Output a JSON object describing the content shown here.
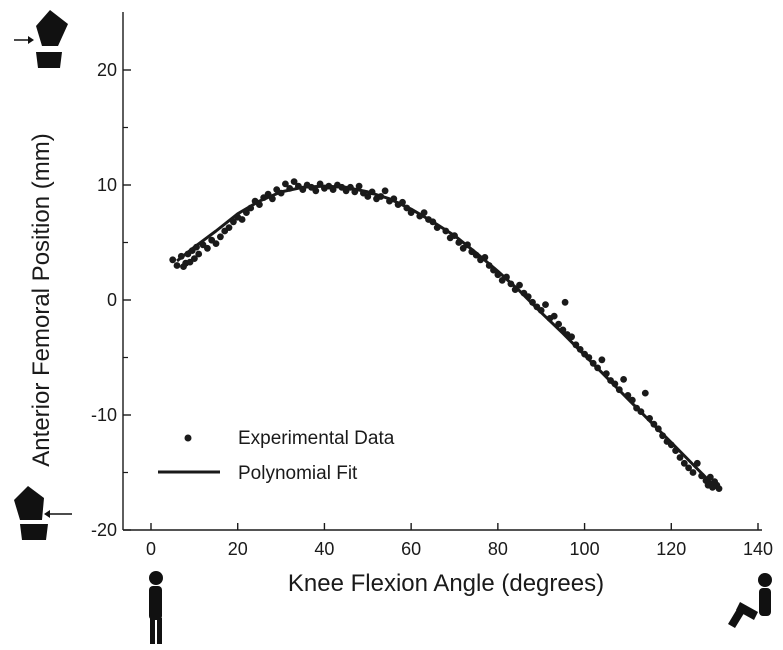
{
  "chart_data": {
    "type": "scatter",
    "xlabel": "Knee Flexion Angle (degrees)",
    "ylabel": "Anterior Femoral Position (mm)",
    "xlim": [
      -10,
      140
    ],
    "ylim": [
      -20,
      25
    ],
    "x_ticks": [
      0,
      20,
      40,
      60,
      80,
      100,
      120,
      140
    ],
    "x_tick_labels": [
      "0",
      "20",
      "40",
      "60",
      "80",
      "100",
      "120",
      "140"
    ],
    "y_ticks": [
      -20,
      -10,
      0,
      10,
      20
    ],
    "y_tick_labels": [
      "-20",
      "-10",
      "0",
      "10",
      "20"
    ],
    "y_minor_ticks": [
      -15,
      -5,
      5,
      15
    ],
    "grid": false,
    "legend_position": "lower-left",
    "colors": {
      "data": "#1a1a1a",
      "axis": "#1a1a1a"
    },
    "series": [
      {
        "name": "Experimental Data",
        "kind": "scatter",
        "points": [
          [
            5,
            3.5
          ],
          [
            6,
            3.0
          ],
          [
            7,
            3.8
          ],
          [
            7.5,
            2.9
          ],
          [
            8,
            3.2
          ],
          [
            8.5,
            4.0
          ],
          [
            9,
            3.3
          ],
          [
            9.5,
            4.3
          ],
          [
            10,
            3.6
          ],
          [
            10.5,
            4.6
          ],
          [
            11,
            4.0
          ],
          [
            12,
            4.8
          ],
          [
            13,
            4.5
          ],
          [
            14,
            5.2
          ],
          [
            15,
            4.9
          ],
          [
            16,
            5.5
          ],
          [
            17,
            6.0
          ],
          [
            18,
            6.3
          ],
          [
            19,
            6.8
          ],
          [
            20,
            7.2
          ],
          [
            21,
            7.0
          ],
          [
            22,
            7.6
          ],
          [
            23,
            8.0
          ],
          [
            24,
            8.6
          ],
          [
            25,
            8.3
          ],
          [
            26,
            8.9
          ],
          [
            27,
            9.2
          ],
          [
            28,
            8.8
          ],
          [
            29,
            9.6
          ],
          [
            30,
            9.3
          ],
          [
            31,
            10.1
          ],
          [
            32,
            9.7
          ],
          [
            33,
            10.3
          ],
          [
            34,
            9.9
          ],
          [
            35,
            9.6
          ],
          [
            36,
            10.0
          ],
          [
            37,
            9.8
          ],
          [
            38,
            9.5
          ],
          [
            39,
            10.1
          ],
          [
            40,
            9.7
          ],
          [
            41,
            9.9
          ],
          [
            42,
            9.6
          ],
          [
            43,
            10.0
          ],
          [
            44,
            9.8
          ],
          [
            45,
            9.5
          ],
          [
            46,
            9.8
          ],
          [
            47,
            9.4
          ],
          [
            48,
            9.9
          ],
          [
            49,
            9.3
          ],
          [
            50,
            9.0
          ],
          [
            51,
            9.4
          ],
          [
            52,
            8.8
          ],
          [
            53,
            9.0
          ],
          [
            54,
            9.5
          ],
          [
            55,
            8.6
          ],
          [
            56,
            8.8
          ],
          [
            57,
            8.3
          ],
          [
            58,
            8.5
          ],
          [
            59,
            8.0
          ],
          [
            60,
            7.6
          ],
          [
            62,
            7.3
          ],
          [
            63,
            7.6
          ],
          [
            64,
            7.0
          ],
          [
            65,
            6.8
          ],
          [
            66,
            6.3
          ],
          [
            68,
            6.0
          ],
          [
            69,
            5.4
          ],
          [
            70,
            5.6
          ],
          [
            71,
            5.0
          ],
          [
            72,
            4.5
          ],
          [
            73,
            4.8
          ],
          [
            74,
            4.2
          ],
          [
            75,
            3.9
          ],
          [
            76,
            3.5
          ],
          [
            77,
            3.7
          ],
          [
            78,
            3.0
          ],
          [
            79,
            2.6
          ],
          [
            80,
            2.2
          ],
          [
            81,
            1.7
          ],
          [
            82,
            2.0
          ],
          [
            83,
            1.4
          ],
          [
            84,
            0.9
          ],
          [
            85,
            1.3
          ],
          [
            86,
            0.6
          ],
          [
            87,
            0.3
          ],
          [
            88,
            -0.2
          ],
          [
            89,
            -0.6
          ],
          [
            90,
            -0.9
          ],
          [
            91,
            -0.4
          ],
          [
            92,
            -1.6
          ],
          [
            93,
            -1.4
          ],
          [
            94,
            -2.1
          ],
          [
            95,
            -2.6
          ],
          [
            95.5,
            -0.2
          ],
          [
            96,
            -3.0
          ],
          [
            97,
            -3.2
          ],
          [
            98,
            -3.9
          ],
          [
            99,
            -4.3
          ],
          [
            100,
            -4.7
          ],
          [
            101,
            -5.0
          ],
          [
            102,
            -5.5
          ],
          [
            103,
            -5.9
          ],
          [
            104,
            -5.2
          ],
          [
            105,
            -6.4
          ],
          [
            106,
            -7.0
          ],
          [
            107,
            -7.3
          ],
          [
            108,
            -7.8
          ],
          [
            109,
            -6.9
          ],
          [
            110,
            -8.3
          ],
          [
            111,
            -8.7
          ],
          [
            112,
            -9.4
          ],
          [
            113,
            -9.7
          ],
          [
            114,
            -8.1
          ],
          [
            115,
            -10.3
          ],
          [
            116,
            -10.8
          ],
          [
            117,
            -11.2
          ],
          [
            118,
            -11.8
          ],
          [
            119,
            -12.3
          ],
          [
            120,
            -12.6
          ],
          [
            121,
            -13.1
          ],
          [
            122,
            -13.7
          ],
          [
            123,
            -14.2
          ],
          [
            124,
            -14.6
          ],
          [
            125,
            -15.0
          ],
          [
            126,
            -14.2
          ],
          [
            127,
            -15.3
          ],
          [
            128,
            -15.7
          ],
          [
            128.5,
            -16.1
          ],
          [
            129,
            -15.4
          ],
          [
            129.5,
            -16.3
          ],
          [
            130,
            -15.8
          ],
          [
            130.5,
            -16.1
          ],
          [
            131,
            -16.4
          ]
        ]
      },
      {
        "name": "Polynomial Fit",
        "kind": "line",
        "points": [
          [
            6,
            3.4
          ],
          [
            10,
            4.6
          ],
          [
            15,
            6.0
          ],
          [
            20,
            7.5
          ],
          [
            25,
            8.6
          ],
          [
            30,
            9.4
          ],
          [
            35,
            9.8
          ],
          [
            40,
            9.9
          ],
          [
            45,
            9.8
          ],
          [
            50,
            9.4
          ],
          [
            55,
            8.8
          ],
          [
            60,
            7.9
          ],
          [
            65,
            6.8
          ],
          [
            70,
            5.6
          ],
          [
            75,
            4.1
          ],
          [
            80,
            2.5
          ],
          [
            85,
            0.8
          ],
          [
            90,
            -1.1
          ],
          [
            95,
            -2.9
          ],
          [
            100,
            -4.8
          ],
          [
            105,
            -6.7
          ],
          [
            110,
            -8.6
          ],
          [
            115,
            -10.5
          ],
          [
            120,
            -12.4
          ],
          [
            125,
            -14.3
          ],
          [
            130,
            -16.2
          ],
          [
            131,
            -16.5
          ]
        ]
      }
    ]
  }
}
